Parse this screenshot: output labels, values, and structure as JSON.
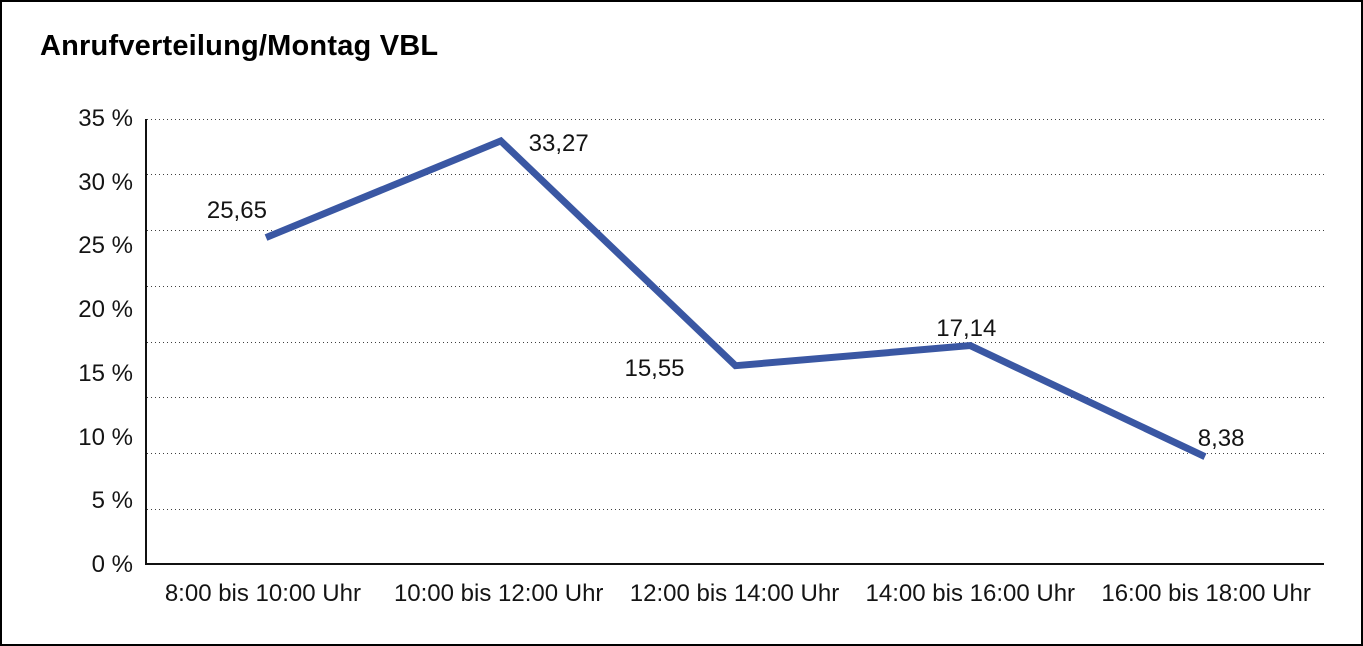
{
  "header": {
    "title": "Anrufverteilung/Montag VBL"
  },
  "chart_data": {
    "type": "line",
    "title": "Anrufverteilung/Montag VBL",
    "categories": [
      "8:00 bis 10:00 Uhr",
      "10:00 bis 12:00 Uhr",
      "12:00 bis 14:00 Uhr",
      "14:00 bis 16:00 Uhr",
      "16:00 bis 18:00 Uhr"
    ],
    "values": [
      25.65,
      33.27,
      15.55,
      17.14,
      8.38
    ],
    "value_labels": [
      "25,65",
      "33,27",
      "15,55",
      "17,14",
      "8,38"
    ],
    "xlabel": "",
    "ylabel": "",
    "ylim": [
      0,
      35
    ],
    "ytick_step": 5,
    "ytick_labels": [
      "0 %",
      "5 %",
      "10 %",
      "15 %",
      "20 %",
      "25 %",
      "30 %",
      "35 %"
    ],
    "grid": "dotted-horizontal",
    "legend": "none",
    "line_color": "#3A57A3",
    "axis_color": "#111111",
    "text_color": "#141414"
  }
}
